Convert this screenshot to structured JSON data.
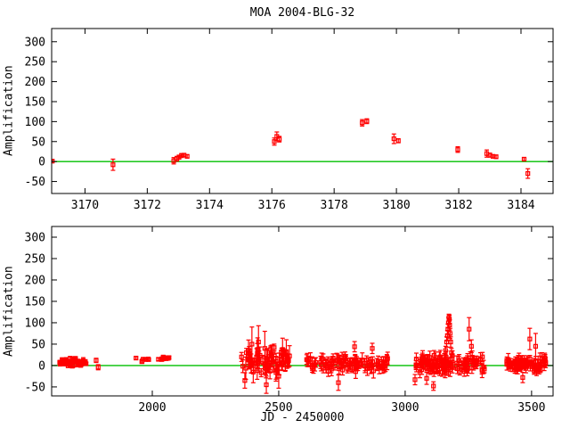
{
  "page": {
    "title": "MOA 2004-BLG-32"
  },
  "colors": {
    "points": "#ff0000",
    "baseline": "#00bf00",
    "axis": "#000000",
    "background": "#ffffff"
  },
  "chart_data": [
    {
      "type": "scatter",
      "name": "event-zoom-panel",
      "title": "MOA 2004-BLG-32",
      "xlabel": "",
      "ylabel": "Amplification",
      "xlim": [
        3168.93,
        3185.03
      ],
      "ylim": [
        -80,
        333
      ],
      "xticks": [
        3170,
        3172,
        3174,
        3176,
        3178,
        3180,
        3182,
        3184
      ],
      "yticks": [
        -50,
        0,
        50,
        100,
        150,
        200,
        250,
        300
      ],
      "baseline": 0,
      "grid": false,
      "legend": null,
      "marker": "open-square-with-error-bars",
      "points": [
        [
          3168.95,
          1,
          3
        ],
        [
          3170.9,
          -8,
          14
        ],
        [
          3172.85,
          2,
          8
        ],
        [
          3172.95,
          7,
          6
        ],
        [
          3173.02,
          11,
          5
        ],
        [
          3173.1,
          15,
          5
        ],
        [
          3173.18,
          16,
          4
        ],
        [
          3173.28,
          13,
          4
        ],
        [
          3176.08,
          50,
          9
        ],
        [
          3176.16,
          63,
          11
        ],
        [
          3176.24,
          56,
          7
        ],
        [
          3178.9,
          97,
          8
        ],
        [
          3179.05,
          101,
          6
        ],
        [
          3179.92,
          57,
          12
        ],
        [
          3180.06,
          52,
          5
        ],
        [
          3181.97,
          30,
          7
        ],
        [
          3182.9,
          20,
          9
        ],
        [
          3183.0,
          16,
          5
        ],
        [
          3183.1,
          13,
          4
        ],
        [
          3183.2,
          12,
          4
        ],
        [
          3184.1,
          6,
          4
        ],
        [
          3184.22,
          -30,
          12
        ]
      ]
    },
    {
      "type": "scatter",
      "name": "full-lightcurve-panel",
      "title": "",
      "xlabel": "JD - 2450000",
      "ylabel": "Amplification",
      "xlim": [
        1602,
        3585
      ],
      "ylim": [
        -71,
        325
      ],
      "xticks": [
        2000,
        2500,
        3000,
        3500
      ],
      "yticks": [
        -50,
        0,
        50,
        100,
        150,
        200,
        250,
        300
      ],
      "baseline": 0,
      "grid": false,
      "legend": null,
      "marker": "open-square-with-error-bars",
      "seed": 20040332,
      "points": [
        [
          1778,
          12,
          5
        ],
        [
          1786,
          -4,
          6
        ],
        [
          2366,
          -35,
          18
        ],
        [
          2372,
          30,
          10
        ],
        [
          2394,
          50,
          40
        ],
        [
          2420,
          55,
          38
        ],
        [
          2445,
          40,
          40
        ],
        [
          2451,
          -45,
          20
        ],
        [
          2468,
          38,
          8
        ],
        [
          2482,
          42,
          8
        ],
        [
          2500,
          -25,
          28
        ],
        [
          2510,
          30,
          6
        ],
        [
          2525,
          28,
          6
        ],
        [
          2736,
          -40,
          18
        ],
        [
          2800,
          44,
          12
        ],
        [
          2870,
          40,
          12
        ],
        [
          3039,
          -33,
          12
        ],
        [
          3085,
          -30,
          14
        ],
        [
          3112,
          -48,
          10
        ],
        [
          3155,
          20,
          8
        ],
        [
          3160,
          35,
          10
        ],
        [
          3164,
          55,
          12
        ],
        [
          3167,
          70,
          12
        ],
        [
          3169,
          85,
          12
        ],
        [
          3171,
          100,
          12
        ],
        [
          3173,
          112,
          8
        ],
        [
          3175,
          108,
          10
        ],
        [
          3176,
          95,
          12
        ],
        [
          3178,
          75,
          12
        ],
        [
          3180,
          55,
          12
        ],
        [
          3183,
          30,
          10
        ],
        [
          3186,
          15,
          8
        ],
        [
          3253,
          85,
          27
        ],
        [
          3262,
          45,
          15
        ],
        [
          3465,
          -28,
          12
        ],
        [
          3493,
          62,
          25
        ],
        [
          3516,
          45,
          30
        ]
      ],
      "clusters": [
        {
          "t0": 1630,
          "t1": 1740,
          "n": 55,
          "base": 8,
          "spread": 11,
          "err": [
            3,
            7
          ]
        },
        {
          "t0": 1930,
          "t1": 1990,
          "n": 8,
          "base": 13,
          "spread": 5,
          "err": [
            3,
            5
          ]
        },
        {
          "t0": 2015,
          "t1": 2070,
          "n": 14,
          "base": 17,
          "spread": 5,
          "err": [
            3,
            5
          ]
        },
        {
          "t0": 2350,
          "t1": 2550,
          "n": 62,
          "base": 8,
          "spread": 30,
          "err": [
            8,
            28
          ]
        },
        {
          "t0": 2610,
          "t1": 2940,
          "n": 88,
          "base": 4,
          "spread": 20,
          "err": [
            7,
            17
          ]
        },
        {
          "t0": 3042,
          "t1": 3320,
          "n": 100,
          "base": 4,
          "spread": 22,
          "err": [
            7,
            17
          ]
        },
        {
          "t0": 3400,
          "t1": 3560,
          "n": 72,
          "base": 4,
          "spread": 18,
          "err": [
            6,
            15
          ]
        }
      ]
    }
  ]
}
